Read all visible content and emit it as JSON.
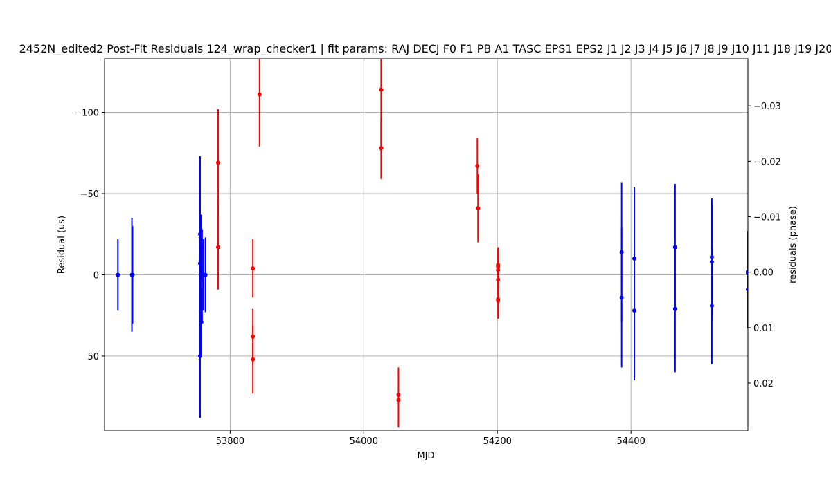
{
  "chart_data": {
    "type": "scatter",
    "title": "2452N_edited2 Post-Fit Residuals 124_wrap_checker1 | fit params: RAJ DECJ F0 F1 PB A1 TASC EPS1 EPS2 J1 J2 J3 J4 J5 J6 J7 J8 J9 J10 J11 J18 J19 J20",
    "xlabel": "MJD",
    "ylabel": "Residual (us)",
    "ylabel_right": "residuals (phase)",
    "xlim": [
      53612,
      54575
    ],
    "ylim": [
      -133,
      96
    ],
    "y_inverted": true,
    "right_axis_ylim": [
      -0.0385,
      0.0286
    ],
    "grid": true,
    "x_ticks": [
      53800,
      54000,
      54200,
      54400
    ],
    "y_ticks": [
      -100,
      -50,
      0,
      50
    ],
    "right_ticks": [
      -0.03,
      -0.02,
      -0.01,
      0.0,
      0.01,
      0.02
    ],
    "x_tick_labels": [
      "53800",
      "54000",
      "54200",
      "54400"
    ],
    "y_tick_labels": [
      "−100",
      "−50",
      "0",
      "50"
    ],
    "right_tick_labels": [
      "−0.03",
      "−0.02",
      "−0.01",
      "0.00",
      "0.01",
      "0.02"
    ],
    "colors": {
      "series_a": "#0000ff",
      "series_b": "#ff0000",
      "grid": "#b0b0b0"
    },
    "series": [
      {
        "color": "#0000ff",
        "points": [
          {
            "x": 53632,
            "y": 0,
            "err": 22
          },
          {
            "x": 53653,
            "y": 0,
            "err": 35
          },
          {
            "x": 53654,
            "y": 0,
            "err": 30
          },
          {
            "x": 53755,
            "y": -25,
            "err": 48
          },
          {
            "x": 53755,
            "y": -7,
            "err": 30
          },
          {
            "x": 53755,
            "y": 50,
            "err": 38
          },
          {
            "x": 53756,
            "y": 0,
            "err": 25
          },
          {
            "x": 53757,
            "y": 29,
            "err": 22
          },
          {
            "x": 53757,
            "y": -17,
            "err": 20
          },
          {
            "x": 53758,
            "y": 0,
            "err": 28
          },
          {
            "x": 53760,
            "y": 0,
            "err": 22
          },
          {
            "x": 53763,
            "y": 0,
            "err": 23
          },
          {
            "x": 54386,
            "y": -14,
            "err": 43
          },
          {
            "x": 54386,
            "y": 14,
            "err": 43
          },
          {
            "x": 54405,
            "y": -10,
            "err": 44
          },
          {
            "x": 54405,
            "y": 22,
            "err": 43
          },
          {
            "x": 54466,
            "y": -17,
            "err": 39
          },
          {
            "x": 54466,
            "y": 21,
            "err": 39
          },
          {
            "x": 54521,
            "y": -11,
            "err": 36
          },
          {
            "x": 54521,
            "y": -8,
            "err": 36
          },
          {
            "x": 54521,
            "y": 19,
            "err": 36
          },
          {
            "x": 54575,
            "y": -2,
            "err": 25
          },
          {
            "x": 54575,
            "y": -1,
            "err": 25
          },
          {
            "x": 54575,
            "y": 9,
            "err": 24
          }
        ]
      },
      {
        "color": "#ff0000",
        "points": [
          {
            "x": 53782,
            "y": -69,
            "err": 33
          },
          {
            "x": 53782,
            "y": -17,
            "err": 26
          },
          {
            "x": 53834,
            "y": -4,
            "err": 18
          },
          {
            "x": 53834,
            "y": 38,
            "err": 17
          },
          {
            "x": 53834,
            "y": 52,
            "err": 21
          },
          {
            "x": 53844,
            "y": -111,
            "err": 32
          },
          {
            "x": 54026,
            "y": -114,
            "err": 38
          },
          {
            "x": 54026,
            "y": -78,
            "err": 19
          },
          {
            "x": 54052,
            "y": 74,
            "err": 17
          },
          {
            "x": 54052,
            "y": 77,
            "err": 17
          },
          {
            "x": 54170,
            "y": -67,
            "err": 17
          },
          {
            "x": 54171,
            "y": -41,
            "err": 21
          },
          {
            "x": 54201,
            "y": -6,
            "err": 11
          },
          {
            "x": 54201,
            "y": -5,
            "err": 11
          },
          {
            "x": 54201,
            "y": -3,
            "err": 11
          },
          {
            "x": 54201,
            "y": 3,
            "err": 11
          },
          {
            "x": 54201,
            "y": 15,
            "err": 11
          },
          {
            "x": 54201,
            "y": 16,
            "err": 11
          }
        ]
      }
    ]
  }
}
